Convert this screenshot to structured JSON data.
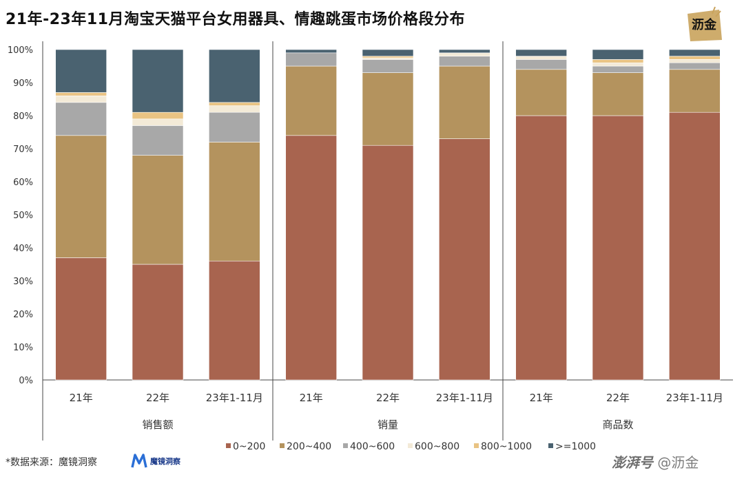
{
  "title": "21年-23年11月淘宝天猫平台女用器具、情趣跳蛋市场价格段分布",
  "logo_text": "沥金",
  "source_text": "*数据来源：魔镜洞察",
  "source_logo_text": "魔镜洞察",
  "watermark": {
    "brand": "澎湃号",
    "author": "@沥金"
  },
  "colors": {
    "0~200": "#a8644f",
    "200~400": "#b4935e",
    "400~600": "#a8a8a8",
    "600~800": "#f3ead7",
    "800~1000": "#e9c383",
    ">=1000": "#4a6270"
  },
  "chart_data": {
    "type": "bar",
    "stacked": true,
    "percent": true,
    "ylim": [
      0,
      100
    ],
    "yticks": [
      "0%",
      "10%",
      "20%",
      "30%",
      "40%",
      "50%",
      "60%",
      "70%",
      "80%",
      "90%",
      "100%"
    ],
    "groups": [
      {
        "name": "销售额",
        "categories": [
          "21年",
          "22年",
          "23年1-11月"
        ],
        "series": [
          {
            "name": "0~200",
            "values": [
              37,
              35,
              36
            ]
          },
          {
            "name": "200~400",
            "values": [
              37,
              33,
              36
            ]
          },
          {
            "name": "400~600",
            "values": [
              10,
              9,
              9
            ]
          },
          {
            "name": "600~800",
            "values": [
              2,
              2,
              2
            ]
          },
          {
            "name": "800~1000",
            "values": [
              1,
              2,
              1
            ]
          },
          {
            "name": ">=1000",
            "values": [
              13,
              19,
              16
            ]
          }
        ]
      },
      {
        "name": "销量",
        "categories": [
          "21年",
          "22年",
          "23年1-11月"
        ],
        "series": [
          {
            "name": "0~200",
            "values": [
              74,
              71,
              73
            ]
          },
          {
            "name": "200~400",
            "values": [
              21,
              22,
              22
            ]
          },
          {
            "name": "400~600",
            "values": [
              4,
              4,
              3
            ]
          },
          {
            "name": "600~800",
            "values": [
              0,
              0.5,
              1
            ]
          },
          {
            "name": "800~1000",
            "values": [
              0,
              0.5,
              0
            ]
          },
          {
            "name": ">=1000",
            "values": [
              1,
              2,
              1
            ]
          }
        ]
      },
      {
        "name": "商品数",
        "categories": [
          "21年",
          "22年",
          "23年1-11月"
        ],
        "series": [
          {
            "name": "0~200",
            "values": [
              80,
              80,
              81
            ]
          },
          {
            "name": "200~400",
            "values": [
              14,
              13,
              13
            ]
          },
          {
            "name": "400~600",
            "values": [
              3,
              2,
              2
            ]
          },
          {
            "name": "600~800",
            "values": [
              1,
              1,
              1
            ]
          },
          {
            "name": "800~1000",
            "values": [
              0,
              1,
              1
            ]
          },
          {
            "name": ">=1000",
            "values": [
              2,
              3,
              2
            ]
          }
        ]
      }
    ],
    "legend": {
      "position": "bottom",
      "labels": [
        "0~200",
        "200~400",
        "400~600",
        "600~800",
        "800~1000",
        ">=1000"
      ]
    }
  }
}
